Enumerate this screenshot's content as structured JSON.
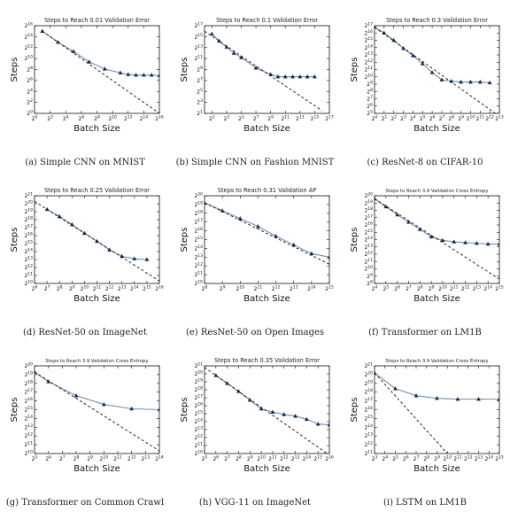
{
  "chart_data": [
    {
      "type": "line",
      "title": "Steps to Reach 0.01 Validation Error",
      "caption": "(a) Simple CNN on MNIST",
      "xlabel": "Batch Size",
      "ylabel": "Steps",
      "x_scale": "log2",
      "y_scale": "log2",
      "xlim_exp": [
        0,
        16
      ],
      "ylim_exp": [
        0,
        16
      ],
      "xticks_exp": [
        0,
        2,
        4,
        6,
        8,
        10,
        12,
        14,
        16
      ],
      "yticks_exp": [
        0,
        2,
        4,
        6,
        8,
        10,
        12,
        14,
        16
      ],
      "series": [
        {
          "style": "measured",
          "x_exp": [
            1,
            3,
            5,
            7,
            9,
            11,
            12,
            13,
            14,
            15,
            16
          ],
          "y_exp": [
            15,
            13,
            11.3,
            9.4,
            8.1,
            7.4,
            7.1,
            7.0,
            7.0,
            7.0,
            6.9
          ]
        },
        {
          "style": "linear-scaling",
          "x_exp": [
            1,
            16
          ],
          "y_exp": [
            15,
            0
          ]
        }
      ]
    },
    {
      "type": "line",
      "title": "Steps to Reach 0.1 Validation Error",
      "caption": "(b) Simple CNN on Fashion MNIST",
      "xlabel": "Batch Size",
      "ylabel": "Steps",
      "x_scale": "log2",
      "y_scale": "log2",
      "xlim_exp": [
        0,
        17
      ],
      "ylim_exp": [
        1,
        17
      ],
      "xticks_exp": [
        1,
        3,
        5,
        7,
        9,
        11,
        13,
        15,
        17
      ],
      "yticks_exp": [
        1,
        3,
        5,
        7,
        9,
        11,
        13,
        15,
        17
      ],
      "series": [
        {
          "style": "measured",
          "x_exp": [
            1,
            2,
            3,
            4,
            5,
            7,
            9,
            10,
            11,
            12,
            13,
            14,
            15
          ],
          "y_exp": [
            15.5,
            14.2,
            13.1,
            12.0,
            11.2,
            9.3,
            8.1,
            7.7,
            7.7,
            7.7,
            7.7,
            7.7,
            7.7
          ]
        },
        {
          "style": "linear-scaling",
          "x_exp": [
            0,
            16
          ],
          "y_exp": [
            16,
            1.5
          ]
        }
      ]
    },
    {
      "type": "line",
      "title": "Steps to Reach 0.3 Validation Error",
      "caption": "(c) ResNet-8 on CIFAR-10",
      "xlabel": "Batch Size",
      "ylabel": "Steps",
      "x_scale": "log2",
      "y_scale": "log2",
      "xlim_exp": [
        0,
        13
      ],
      "ylim_exp": [
        5,
        17
      ],
      "xticks_exp": [
        0,
        1,
        2,
        3,
        4,
        5,
        6,
        7,
        8,
        9,
        10,
        11,
        12,
        13
      ],
      "yticks_exp": [
        5,
        6,
        7,
        8,
        9,
        10,
        11,
        12,
        13,
        14,
        15,
        16,
        17
      ],
      "series": [
        {
          "style": "measured",
          "x_exp": [
            0,
            1,
            2,
            3,
            4,
            5,
            6,
            7,
            8,
            9,
            10,
            11,
            12
          ],
          "y_exp": [
            16.8,
            16.0,
            15.0,
            13.9,
            12.9,
            11.8,
            10.6,
            9.6,
            9.4,
            9.3,
            9.3,
            9.3,
            9.2
          ]
        },
        {
          "style": "linear-scaling",
          "x_exp": [
            0,
            13
          ],
          "y_exp": [
            16.8,
            4.6
          ]
        }
      ]
    },
    {
      "type": "line",
      "title": "Steps to Reach 0.25 Validation Error",
      "caption": "(d) ResNet-50 on ImageNet",
      "xlabel": "Batch Size",
      "ylabel": "Steps",
      "x_scale": "log2",
      "y_scale": "log2",
      "xlim_exp": [
        6,
        16
      ],
      "ylim_exp": [
        10,
        21
      ],
      "xticks_exp": [
        6,
        7,
        8,
        9,
        10,
        11,
        12,
        13,
        14,
        15,
        16
      ],
      "yticks_exp": [
        10,
        11,
        12,
        13,
        14,
        15,
        16,
        17,
        18,
        19,
        20,
        21
      ],
      "series": [
        {
          "style": "measured",
          "x_exp": [
            7,
            8,
            9,
            10,
            11,
            12,
            13,
            14,
            15
          ],
          "y_exp": [
            19.3,
            18.4,
            17.4,
            16.3,
            15.3,
            14.2,
            13.4,
            13.1,
            13.0
          ]
        },
        {
          "style": "linear-scaling",
          "x_exp": [
            6,
            16
          ],
          "y_exp": [
            20.3,
            10.3
          ]
        }
      ]
    },
    {
      "type": "line",
      "title": "Steps to Reach 0.31 Validation AP",
      "caption": "(e) ResNet-50 on Open Images",
      "xlabel": "Batch Size",
      "ylabel": "Steps",
      "x_scale": "log2",
      "y_scale": "log2",
      "xlim_exp": [
        8,
        15
      ],
      "ylim_exp": [
        10,
        20
      ],
      "xticks_exp": [
        8,
        9,
        10,
        11,
        12,
        13,
        14,
        15
      ],
      "yticks_exp": [
        10,
        11,
        12,
        13,
        14,
        15,
        16,
        17,
        18,
        19,
        20
      ],
      "series": [
        {
          "style": "measured",
          "x_exp": [
            8,
            9,
            10,
            11,
            12,
            13,
            14,
            15
          ],
          "y_exp": [
            19.2,
            18.3,
            17.4,
            16.5,
            15.4,
            14.4,
            13.4,
            13.0
          ]
        },
        {
          "style": "linear-scaling",
          "x_exp": [
            8,
            15
          ],
          "y_exp": [
            19.2,
            12.2
          ]
        }
      ]
    },
    {
      "type": "line",
      "title": "Steps to Reach 3.9 Validation Cross Entropy",
      "caption": "(f) Transformer on LM1B",
      "xlabel": "Batch Size",
      "ylabel": "Steps",
      "x_scale": "log2",
      "y_scale": "log2",
      "xlim_exp": [
        4,
        15
      ],
      "ylim_exp": [
        8,
        20
      ],
      "xticks_exp": [
        4,
        5,
        6,
        7,
        8,
        9,
        10,
        11,
        12,
        13,
        14,
        15
      ],
      "yticks_exp": [
        8,
        9,
        10,
        11,
        12,
        13,
        14,
        15,
        16,
        17,
        18,
        19,
        20
      ],
      "series": [
        {
          "style": "measured",
          "x_exp": [
            4,
            5,
            6,
            7,
            8,
            9,
            10,
            11,
            12,
            13,
            14,
            15
          ],
          "y_exp": [
            19.6,
            18.5,
            17.4,
            16.4,
            15.4,
            14.4,
            13.9,
            13.7,
            13.6,
            13.5,
            13.4,
            13.4
          ]
        },
        {
          "style": "linear-scaling",
          "x_exp": [
            4,
            15
          ],
          "y_exp": [
            19.6,
            8.6
          ]
        }
      ]
    },
    {
      "type": "line",
      "title": "Steps to Reach 3.9 Validation Cross Entropy",
      "caption": "(g) Transformer on Common Crawl",
      "xlabel": "Batch Size",
      "ylabel": "Steps",
      "x_scale": "log2",
      "y_scale": "log2",
      "xlim_exp": [
        5,
        14
      ],
      "ylim_exp": [
        10,
        20
      ],
      "xticks_exp": [
        5,
        6,
        7,
        8,
        9,
        10,
        11,
        12,
        13,
        14
      ],
      "yticks_exp": [
        10,
        11,
        12,
        13,
        14,
        15,
        16,
        17,
        18,
        19,
        20
      ],
      "series": [
        {
          "style": "measured",
          "x_exp": [
            5,
            6,
            8,
            10,
            12,
            14
          ],
          "y_exp": [
            19.3,
            18.2,
            16.6,
            15.6,
            15.1,
            15.0
          ]
        },
        {
          "style": "linear-scaling",
          "x_exp": [
            5,
            14
          ],
          "y_exp": [
            19.3,
            10.3
          ]
        }
      ]
    },
    {
      "type": "line",
      "title": "Steps to Reach 0.35 Validation Error",
      "caption": "(h) VGG-11 on ImageNet",
      "xlabel": "Batch Size",
      "ylabel": "Steps",
      "x_scale": "log2",
      "y_scale": "log2",
      "xlim_exp": [
        5,
        16
      ],
      "ylim_exp": [
        10,
        21
      ],
      "xticks_exp": [
        5,
        6,
        7,
        8,
        9,
        10,
        11,
        12,
        13,
        14,
        15,
        16
      ],
      "yticks_exp": [
        10,
        11,
        12,
        13,
        14,
        15,
        16,
        17,
        18,
        19,
        20,
        21
      ],
      "series": [
        {
          "style": "measured",
          "x_exp": [
            6,
            7,
            8,
            9,
            10,
            11,
            12,
            13,
            14,
            15,
            16
          ],
          "y_exp": [
            19.8,
            18.8,
            17.8,
            16.7,
            15.6,
            15.2,
            14.9,
            14.7,
            14.3,
            13.7,
            13.6
          ]
        },
        {
          "style": "linear-scaling",
          "x_exp": [
            5,
            16
          ],
          "y_exp": [
            20.8,
            9.8
          ]
        }
      ]
    },
    {
      "type": "line",
      "title": "Steps to Reach 3.9 Validation Cross Entropy",
      "caption": "(i) LSTM on LM1B",
      "xlabel": "Batch Size",
      "ylabel": "Steps",
      "x_scale": "log2",
      "y_scale": "log2",
      "xlim_exp": [
        3,
        15
      ],
      "ylim_exp": [
        11,
        21
      ],
      "xticks_exp": [
        3,
        4,
        5,
        6,
        7,
        8,
        9,
        10,
        11,
        12,
        13,
        14,
        15
      ],
      "yticks_exp": [
        11,
        12,
        13,
        14,
        15,
        16,
        17,
        18,
        19,
        20,
        21
      ],
      "series": [
        {
          "style": "measured",
          "x_exp": [
            3,
            5,
            7,
            9,
            11,
            13,
            15
          ],
          "y_exp": [
            20.2,
            18.4,
            17.6,
            17.3,
            17.2,
            17.2,
            17.2
          ]
        },
        {
          "style": "linear-scaling",
          "x_exp": [
            3,
            10
          ],
          "y_exp": [
            20.2,
            11.0
          ]
        }
      ]
    }
  ],
  "style": {
    "measured_color": "#6f8fae",
    "marker_color": "#1b2a44",
    "linear_color": "#111111",
    "axis_color": "#111111"
  }
}
